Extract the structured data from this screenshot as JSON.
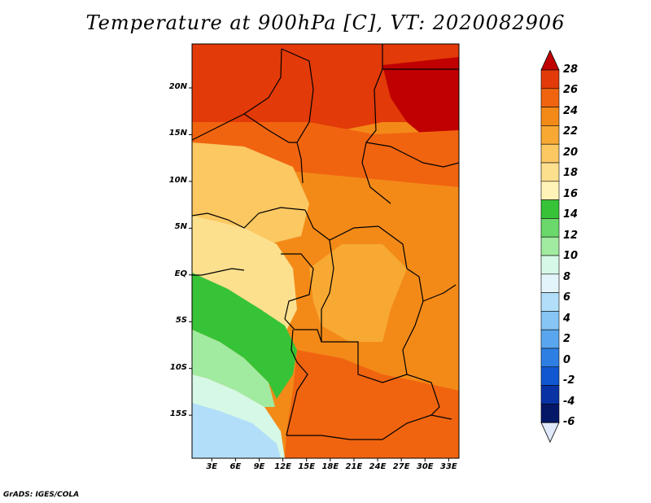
{
  "title": "Temperature at 900hPa [C], VT: 2020082906",
  "footer": "GrADS: IGES/COLA",
  "map": {
    "lat_labels": [
      "20N",
      "15N",
      "10N",
      "5N",
      "EQ",
      "5S",
      "10S",
      "15S"
    ],
    "lat_values": [
      20,
      15,
      10,
      5,
      0,
      -5,
      -10,
      -15
    ],
    "lon_labels": [
      "3E",
      "6E",
      "9E",
      "12E",
      "15E",
      "18E",
      "21E",
      "24E",
      "27E",
      "30E",
      "33E"
    ],
    "lon_values": [
      3,
      6,
      9,
      12,
      15,
      18,
      21,
      24,
      27,
      30,
      33
    ],
    "lon_range": [
      0.5,
      34.3
    ],
    "lat_range": [
      -19.6,
      24.7
    ]
  },
  "colorbar": {
    "labels": [
      "28",
      "26",
      "24",
      "22",
      "20",
      "18",
      "16",
      "14",
      "12",
      "10",
      "8",
      "6",
      "4",
      "2",
      "0",
      "-2",
      "-4",
      "-6"
    ],
    "colors": [
      "#c00000",
      "#e23a08",
      "#f06410",
      "#f38a18",
      "#f7a934",
      "#fbc862",
      "#fde08e",
      "#fff3b7",
      "#37c337",
      "#6ad86a",
      "#a1eba1",
      "#d6f8e6",
      "#e4f4fb",
      "#b2def9",
      "#86c5f4",
      "#5aa6ee",
      "#2d7fe3",
      "#1257d2",
      "#0933a5",
      "#051868",
      "#e0e8fb"
    ]
  },
  "regions": [
    {
      "name": "sahara-north",
      "color": "#e23a08"
    },
    {
      "name": "sahara-east",
      "color": "#c00000"
    },
    {
      "name": "sahel",
      "color": "#f06410"
    },
    {
      "name": "central",
      "color": "#f38a18"
    },
    {
      "name": "west-africa",
      "color": "#fbc862"
    },
    {
      "name": "gulf",
      "color": "#fde08e"
    },
    {
      "name": "ocean-green",
      "color": "#37c337"
    },
    {
      "name": "ocean-light-green",
      "color": "#a1eba1"
    },
    {
      "name": "ocean-pale",
      "color": "#d6f8e6"
    },
    {
      "name": "ocean-blue",
      "color": "#b2def9"
    },
    {
      "name": "southern-africa",
      "color": "#f06410"
    },
    {
      "name": "east-africa",
      "color": "#f7a934"
    }
  ]
}
